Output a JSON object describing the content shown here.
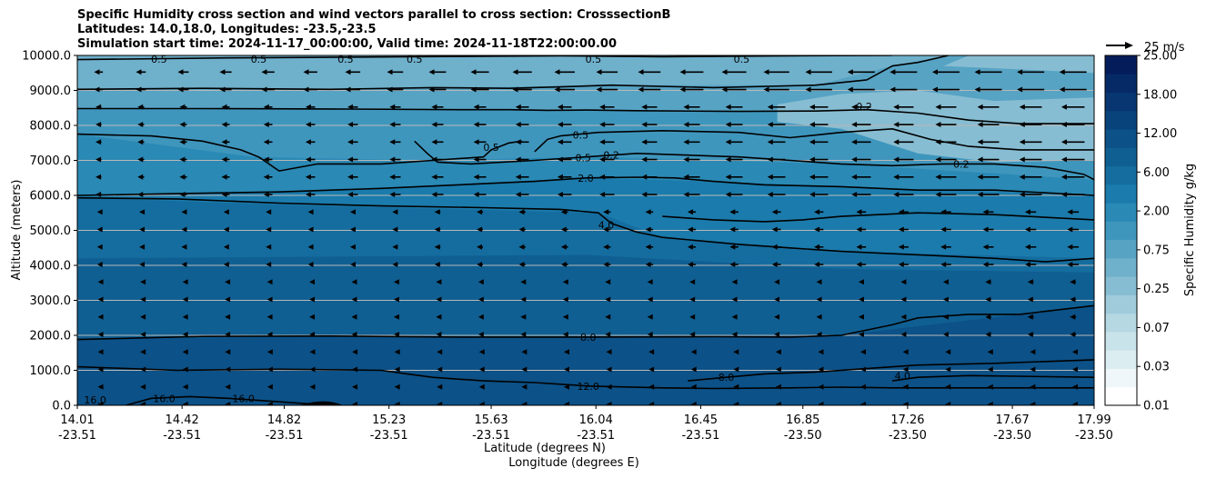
{
  "chart_data": {
    "type": "contour",
    "title_lines": [
      "Specific Humidity cross section and wind vectors parallel to cross section: CrosssectionB",
      "Latitudes: 14.0,18.0, Longitudes: -23.5,-23.5",
      "Simulation start time: 2024-11-17_00:00:00, Valid time: 2024-11-18T22:00:00.00"
    ],
    "ylabel": "Altitude (meters)",
    "xlabel_lines": [
      "Latitude (degrees N)",
      "Longitude (degrees E)"
    ],
    "ylim": [
      0,
      10000
    ],
    "y_ticks": [
      "0.0",
      "1000.0",
      "2000.0",
      "3000.0",
      "4000.0",
      "5000.0",
      "6000.0",
      "7000.0",
      "8000.0",
      "9000.0",
      "10000.0"
    ],
    "x_ticks": [
      {
        "lat": "14.01",
        "lon": "-23.51"
      },
      {
        "lat": "14.42",
        "lon": "-23.51"
      },
      {
        "lat": "14.82",
        "lon": "-23.51"
      },
      {
        "lat": "15.23",
        "lon": "-23.51"
      },
      {
        "lat": "15.63",
        "lon": "-23.51"
      },
      {
        "lat": "16.04",
        "lon": "-23.51"
      },
      {
        "lat": "16.45",
        "lon": "-23.51"
      },
      {
        "lat": "16.85",
        "lon": "-23.50"
      },
      {
        "lat": "17.26",
        "lon": "-23.50"
      },
      {
        "lat": "17.67",
        "lon": "-23.50"
      },
      {
        "lat": "17.99",
        "lon": "-23.50"
      }
    ],
    "colorbar": {
      "label": "Specific Humidity g/kg",
      "tick_labels": [
        "0.01",
        "0.03",
        "0.07",
        "0.25",
        "0.75",
        "2.00",
        "6.00",
        "12.00",
        "18.00",
        "25.00"
      ],
      "levels": [
        0.01,
        0.02,
        0.03,
        0.05,
        0.07,
        0.1,
        0.25,
        0.5,
        0.75,
        1,
        2,
        3,
        6,
        9,
        12,
        15,
        18,
        21,
        25
      ],
      "colors": [
        "#ffffff",
        "#f0f7fa",
        "#dcedf2",
        "#c9e3eb",
        "#b5d8e3",
        "#9fcbdb",
        "#87bdd2",
        "#6fb0cb",
        "#57a3c4",
        "#3f96bd",
        "#2a89b5",
        "#1b7bac",
        "#156d9f",
        "#105f92",
        "#0c5187",
        "#08437c",
        "#073671",
        "#062a66",
        "#041d5a"
      ]
    },
    "wind_reference": "25 m/s",
    "contour_labels": [
      {
        "text": "0.5",
        "lat": 14.33,
        "alt": 9900
      },
      {
        "text": "0.5",
        "lat": 14.72,
        "alt": 9900
      },
      {
        "text": "0.5",
        "lat": 15.06,
        "alt": 9900
      },
      {
        "text": "0.5",
        "lat": 15.33,
        "alt": 9900
      },
      {
        "text": "0.5",
        "lat": 16.03,
        "alt": 9900
      },
      {
        "text": "0.5",
        "lat": 16.61,
        "alt": 9900
      },
      {
        "text": "0.2",
        "lat": 17.09,
        "alt": 8550
      },
      {
        "text": "0.2",
        "lat": 17.47,
        "alt": 6900
      },
      {
        "text": "0.5",
        "lat": 15.63,
        "alt": 7380
      },
      {
        "text": "0.5",
        "lat": 15.98,
        "alt": 7730
      },
      {
        "text": "0.5",
        "lat": 15.99,
        "alt": 7080
      },
      {
        "text": "0.2",
        "lat": 16.1,
        "alt": 7150
      },
      {
        "text": "2.0",
        "lat": 16.0,
        "alt": 6500
      },
      {
        "text": "4.0",
        "lat": 16.08,
        "alt": 5150
      },
      {
        "text": "8.0",
        "lat": 16.01,
        "alt": 1950
      },
      {
        "text": "12.0",
        "lat": 16.01,
        "alt": 550
      },
      {
        "text": "8.0",
        "lat": 16.55,
        "alt": 800
      },
      {
        "text": "4.0",
        "lat": 17.24,
        "alt": 850
      },
      {
        "text": "16.0",
        "lat": 14.08,
        "alt": 150
      },
      {
        "text": "16.0",
        "lat": 14.35,
        "alt": 200
      },
      {
        "text": "16.0",
        "lat": 14.66,
        "alt": 200
      }
    ],
    "contour_lines": [
      {
        "level": "0.5",
        "points": [
          [
            14.01,
            9880
          ],
          [
            14.6,
            9930
          ],
          [
            15.3,
            9960
          ],
          [
            15.9,
            9990
          ],
          [
            16.3,
            9960
          ],
          [
            16.8,
            9990
          ],
          [
            17.2,
            10000
          ]
        ]
      },
      {
        "level": "0.5",
        "points": [
          [
            14.01,
            9030
          ],
          [
            14.5,
            9060
          ],
          [
            15.0,
            9030
          ],
          [
            15.4,
            9080
          ],
          [
            15.7,
            9060
          ],
          [
            15.9,
            9100
          ],
          [
            16.1,
            9150
          ],
          [
            16.5,
            9080
          ],
          [
            16.9,
            9150
          ],
          [
            17.1,
            9300
          ],
          [
            17.2,
            9700
          ],
          [
            17.3,
            9800
          ],
          [
            17.42,
            10000
          ]
        ]
      },
      {
        "level": "0.5",
        "points": [
          [
            14.01,
            8480
          ],
          [
            14.5,
            8480
          ],
          [
            15.0,
            8470
          ],
          [
            15.5,
            8450
          ],
          [
            15.7,
            8450
          ],
          [
            15.85,
            8430
          ],
          [
            16.0,
            8440
          ],
          [
            16.2,
            8420
          ],
          [
            16.6,
            8400
          ],
          [
            16.9,
            8410
          ],
          [
            17.1,
            8450
          ],
          [
            17.3,
            8350
          ],
          [
            17.5,
            8150
          ],
          [
            17.7,
            8050
          ],
          [
            17.99,
            8050
          ]
        ]
      },
      {
        "level": "0.2",
        "points": [
          [
            14.01,
            7750
          ],
          [
            14.3,
            7700
          ],
          [
            14.5,
            7550
          ],
          [
            14.65,
            7300
          ],
          [
            14.72,
            7100
          ],
          [
            14.75,
            6950
          ],
          [
            14.8,
            6700
          ],
          [
            14.95,
            6900
          ],
          [
            15.2,
            6900
          ],
          [
            15.4,
            7000
          ],
          [
            15.6,
            7100
          ],
          [
            15.63,
            7300
          ],
          [
            15.7,
            7500
          ],
          [
            15.75,
            7550
          ]
        ]
      },
      {
        "level": "0.2",
        "points": [
          [
            15.33,
            7550
          ],
          [
            15.38,
            7200
          ],
          [
            15.42,
            6950
          ],
          [
            15.55,
            6900
          ],
          [
            15.8,
            7000
          ],
          [
            16.0,
            7100
          ],
          [
            16.2,
            7200
          ],
          [
            16.4,
            7150
          ],
          [
            16.6,
            7100
          ],
          [
            16.7,
            7050
          ],
          [
            16.8,
            7000
          ],
          [
            17.0,
            6900
          ],
          [
            17.2,
            6850
          ],
          [
            17.4,
            6900
          ],
          [
            17.6,
            6900
          ],
          [
            17.8,
            6800
          ],
          [
            17.95,
            6600
          ],
          [
            17.99,
            6450
          ]
        ]
      },
      {
        "level": "0.5",
        "points": [
          [
            15.8,
            7250
          ],
          [
            15.85,
            7600
          ],
          [
            15.9,
            7700
          ],
          [
            16.05,
            7800
          ],
          [
            16.3,
            7850
          ],
          [
            16.6,
            7800
          ],
          [
            16.8,
            7650
          ],
          [
            17.0,
            7800
          ],
          [
            17.2,
            7900
          ],
          [
            17.35,
            7600
          ],
          [
            17.5,
            7400
          ],
          [
            17.7,
            7300
          ],
          [
            17.99,
            7300
          ]
        ]
      },
      {
        "level": "2.0",
        "points": [
          [
            14.01,
            6000
          ],
          [
            14.4,
            6050
          ],
          [
            14.8,
            6100
          ],
          [
            15.2,
            6200
          ],
          [
            15.5,
            6300
          ],
          [
            15.8,
            6400
          ],
          [
            16.0,
            6500
          ],
          [
            16.2,
            6520
          ],
          [
            16.35,
            6500
          ],
          [
            16.5,
            6400
          ],
          [
            16.7,
            6300
          ],
          [
            17.0,
            6250
          ],
          [
            17.3,
            6150
          ],
          [
            17.6,
            6150
          ],
          [
            17.99,
            6000
          ]
        ]
      },
      {
        "level": "4.0",
        "points": [
          [
            14.01,
            5930
          ],
          [
            14.4,
            5900
          ],
          [
            14.8,
            5780
          ],
          [
            15.2,
            5700
          ],
          [
            15.6,
            5650
          ],
          [
            15.9,
            5600
          ],
          [
            16.05,
            5500
          ],
          [
            16.1,
            5200
          ],
          [
            16.2,
            4950
          ],
          [
            16.3,
            4800
          ],
          [
            16.6,
            4600
          ],
          [
            16.8,
            4500
          ],
          [
            17.0,
            4400
          ],
          [
            17.3,
            4300
          ],
          [
            17.6,
            4200
          ],
          [
            17.8,
            4100
          ],
          [
            17.99,
            4200
          ]
        ]
      },
      {
        "level": "2.0",
        "points": [
          [
            16.3,
            5400
          ],
          [
            16.5,
            5300
          ],
          [
            16.7,
            5250
          ],
          [
            16.85,
            5300
          ],
          [
            17.0,
            5400
          ],
          [
            17.3,
            5500
          ],
          [
            17.6,
            5450
          ],
          [
            17.99,
            5300
          ]
        ]
      },
      {
        "level": "8.0",
        "points": [
          [
            14.01,
            1880
          ],
          [
            14.5,
            1970
          ],
          [
            15.0,
            1980
          ],
          [
            15.5,
            1950
          ],
          [
            16.01,
            1950
          ],
          [
            16.5,
            1960
          ],
          [
            16.8,
            1950
          ],
          [
            17.0,
            2000
          ],
          [
            17.2,
            2300
          ],
          [
            17.3,
            2500
          ],
          [
            17.5,
            2600
          ],
          [
            17.7,
            2600
          ],
          [
            17.99,
            2850
          ]
        ]
      },
      {
        "level": "12.0",
        "points": [
          [
            14.01,
            1100
          ],
          [
            14.4,
            1000
          ],
          [
            14.8,
            1030
          ],
          [
            15.2,
            1000
          ],
          [
            15.3,
            900
          ],
          [
            15.4,
            800
          ],
          [
            15.6,
            700
          ],
          [
            15.8,
            650
          ],
          [
            16.01,
            550
          ],
          [
            16.3,
            500
          ],
          [
            16.5,
            480
          ],
          [
            16.8,
            500
          ],
          [
            17.0,
            520
          ],
          [
            17.2,
            500
          ],
          [
            17.5,
            500
          ],
          [
            17.99,
            500
          ]
        ]
      },
      {
        "level": "8.0",
        "points": [
          [
            16.4,
            700
          ],
          [
            16.55,
            800
          ],
          [
            16.7,
            900
          ],
          [
            16.9,
            950
          ],
          [
            17.1,
            1050
          ],
          [
            17.3,
            1150
          ],
          [
            17.6,
            1200
          ],
          [
            17.99,
            1300
          ]
        ]
      },
      {
        "level": "4.0",
        "points": [
          [
            17.2,
            700
          ],
          [
            17.3,
            800
          ],
          [
            17.5,
            850
          ],
          [
            17.99,
            800
          ]
        ]
      },
      {
        "level": "16.0",
        "points": [
          [
            14.2,
            0
          ],
          [
            14.3,
            200
          ],
          [
            14.45,
            250
          ],
          [
            14.6,
            200
          ],
          [
            14.7,
            150
          ],
          [
            14.9,
            50
          ],
          [
            15.0,
            0
          ]
        ]
      }
    ]
  }
}
